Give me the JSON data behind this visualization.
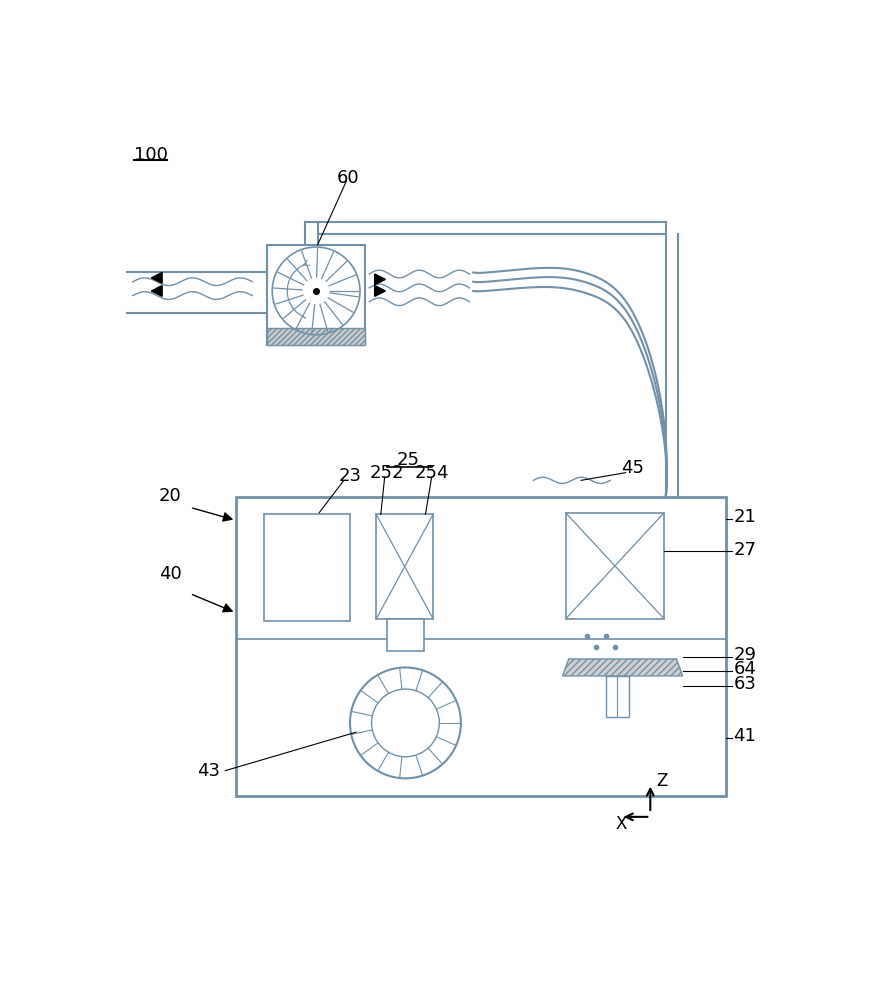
{
  "bg_color": "#ffffff",
  "line_color": "#7090a8",
  "black": "#000000",
  "figure_width": 8.73,
  "figure_height": 10.0
}
